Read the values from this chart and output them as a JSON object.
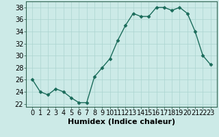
{
  "x": [
    0,
    1,
    2,
    3,
    4,
    5,
    6,
    7,
    8,
    9,
    10,
    11,
    12,
    13,
    14,
    15,
    16,
    17,
    18,
    19,
    20,
    21,
    22,
    23
  ],
  "y": [
    26,
    24,
    23.5,
    24.5,
    24,
    23,
    22.2,
    22.2,
    26.5,
    28,
    29.5,
    32.5,
    35,
    37,
    36.5,
    36.5,
    38,
    38,
    37.5,
    38,
    37,
    34,
    30,
    28.5
  ],
  "line_color": "#1a6b5a",
  "marker": "D",
  "markersize": 2.5,
  "linewidth": 1.0,
  "bg_color": "#cceae7",
  "grid_color": "#aad4d0",
  "xlabel": "Humidex (Indice chaleur)",
  "xlabel_fontsize": 8,
  "tick_fontsize": 7,
  "ylim": [
    21.5,
    39
  ],
  "yticks": [
    22,
    24,
    26,
    28,
    30,
    32,
    34,
    36,
    38
  ],
  "xticks": [
    0,
    1,
    2,
    3,
    4,
    5,
    6,
    7,
    8,
    9,
    10,
    11,
    12,
    13,
    14,
    15,
    16,
    17,
    18,
    19,
    20,
    21,
    22,
    23
  ],
  "spine_color": "#336655"
}
